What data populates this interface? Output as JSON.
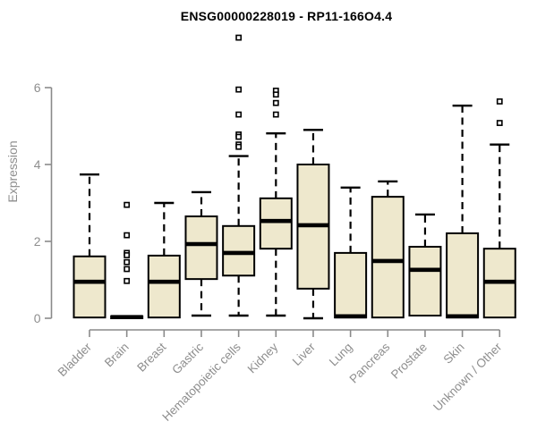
{
  "chart_data": {
    "type": "boxplot",
    "title": "ENSG00000228019 - RP11-166O4.4",
    "ylabel": "Expression",
    "xlabel": "",
    "ylim": [
      0,
      7.5
    ],
    "yticks": [
      0,
      2,
      4,
      6
    ],
    "grid": false,
    "legend": null,
    "colors": {
      "box_fill": "#EEE8CD",
      "box_stroke": "#000000",
      "median": "#000000",
      "whisker": "#000000",
      "axis": "#8a8a8a",
      "tick_text": "#8e8e8e",
      "title_text": "#000000",
      "background": "#ffffff"
    },
    "categories": [
      "Bladder",
      "Brain",
      "Breast",
      "Gastric",
      "Hematopoietic cells",
      "Kidney",
      "Liver",
      "Lung",
      "Pancreas",
      "Prostate",
      "Skin",
      "Unknown / Other"
    ],
    "boxes": [
      {
        "category": "Bladder",
        "lower_whisker": 0.02,
        "q1": 0.02,
        "median": 0.95,
        "q3": 1.61,
        "upper_whisker": 3.74,
        "outliers": []
      },
      {
        "category": "Brain",
        "lower_whisker": 0.0,
        "q1": 0.0,
        "median": 0.03,
        "q3": 0.05,
        "upper_whisker": 0.05,
        "outliers": [
          2.95,
          2.16,
          1.7,
          1.64,
          1.46,
          1.28,
          0.97
        ]
      },
      {
        "category": "Breast",
        "lower_whisker": 0.02,
        "q1": 0.02,
        "median": 0.95,
        "q3": 1.63,
        "upper_whisker": 3.0,
        "outliers": []
      },
      {
        "category": "Gastric",
        "lower_whisker": 0.07,
        "q1": 1.02,
        "median": 1.93,
        "q3": 2.65,
        "upper_whisker": 3.28,
        "outliers": []
      },
      {
        "category": "Hematopoietic cells",
        "lower_whisker": 0.07,
        "q1": 1.11,
        "median": 1.7,
        "q3": 2.4,
        "upper_whisker": 4.22,
        "outliers": [
          7.3,
          5.95,
          5.3,
          4.78,
          4.72,
          4.52,
          4.46
        ]
      },
      {
        "category": "Kidney",
        "lower_whisker": 0.07,
        "q1": 1.81,
        "median": 2.53,
        "q3": 3.12,
        "upper_whisker": 4.81,
        "outliers": [
          5.92,
          5.82,
          5.6,
          5.3
        ]
      },
      {
        "category": "Liver",
        "lower_whisker": 0.0,
        "q1": 0.77,
        "median": 2.42,
        "q3": 4.0,
        "upper_whisker": 4.9,
        "outliers": []
      },
      {
        "category": "Lung",
        "lower_whisker": 0.0,
        "q1": 0.02,
        "median": 0.05,
        "q3": 1.7,
        "upper_whisker": 3.4,
        "outliers": []
      },
      {
        "category": "Pancreas",
        "lower_whisker": 0.02,
        "q1": 0.02,
        "median": 1.49,
        "q3": 3.16,
        "upper_whisker": 3.56,
        "outliers": []
      },
      {
        "category": "Prostate",
        "lower_whisker": 0.07,
        "q1": 0.07,
        "median": 1.26,
        "q3": 1.86,
        "upper_whisker": 2.7,
        "outliers": []
      },
      {
        "category": "Skin",
        "lower_whisker": 0.02,
        "q1": 0.02,
        "median": 0.05,
        "q3": 2.21,
        "upper_whisker": 5.53,
        "outliers": []
      },
      {
        "category": "Unknown / Other",
        "lower_whisker": 0.02,
        "q1": 0.02,
        "median": 0.95,
        "q3": 1.81,
        "upper_whisker": 4.52,
        "outliers": [
          5.64,
          5.08
        ]
      }
    ]
  }
}
